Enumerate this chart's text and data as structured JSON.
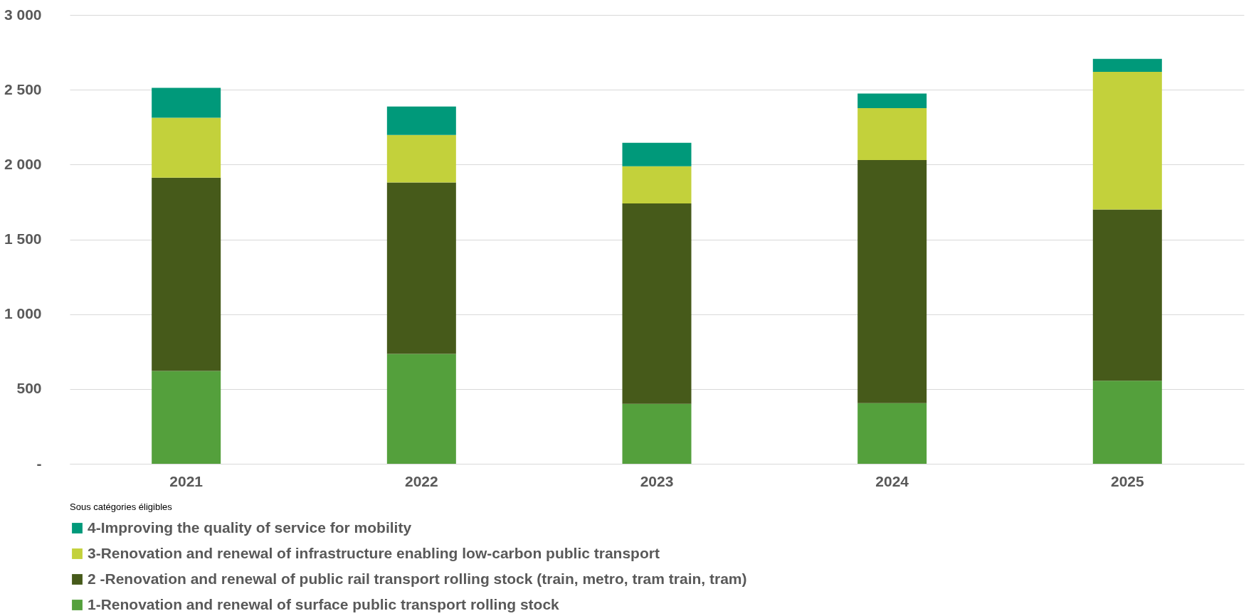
{
  "chart_data": {
    "type": "bar",
    "stacked": true,
    "legend_title": "Sous catégories éligibles",
    "categories": [
      "2021",
      "2022",
      "2023",
      "2024",
      "2025"
    ],
    "series": [
      {
        "name": "1-Renovation and renewal of surface public transport rolling stock",
        "color": "#54a03c",
        "values": [
          620,
          735,
          400,
          405,
          555
        ]
      },
      {
        "name": "2 -Renovation and renewal of public rail transport rolling stock (train, metro, tram train, tram)",
        "color": "#465a1a",
        "values": [
          1293,
          1145,
          1340,
          1625,
          1145
        ]
      },
      {
        "name": "3-Renovation and renewal of infrastructure enabling low-carbon public transport",
        "color": "#c3d13b",
        "values": [
          400,
          318,
          248,
          347,
          920
        ]
      },
      {
        "name": "4-Improving the quality of service for mobility",
        "color": "#00997a",
        "values": [
          200,
          190,
          157,
          98,
          87
        ]
      }
    ],
    "ylim": [
      0,
      3000
    ],
    "yticks": [
      {
        "value": 0,
        "label": "-"
      },
      {
        "value": 500,
        "label": "500"
      },
      {
        "value": 1000,
        "label": "1 000"
      },
      {
        "value": 1500,
        "label": "1 500"
      },
      {
        "value": 2000,
        "label": "2 000"
      },
      {
        "value": 2500,
        "label": "2 500"
      },
      {
        "value": 3000,
        "label": "3 000"
      }
    ],
    "grid": "y",
    "legend": "bottom"
  }
}
